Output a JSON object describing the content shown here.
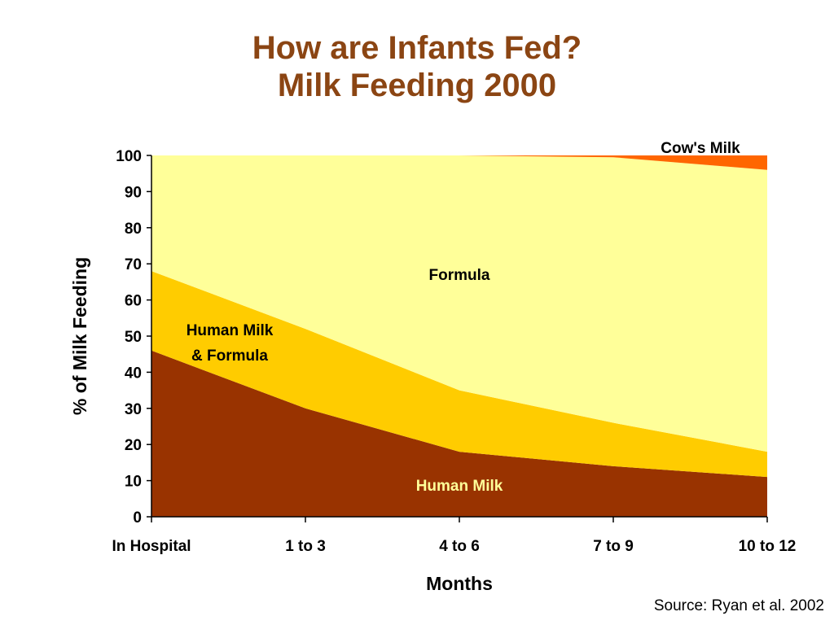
{
  "title_line1": "How are Infants Fed?",
  "title_line2": "Milk Feeding 2000",
  "source": "Source: Ryan et al. 2002",
  "colors": {
    "human_milk": "#993300",
    "human_milk_formula": "#FFCC00",
    "formula": "#FFFF99",
    "cows_milk": "#FF6600",
    "title": "#8B4513",
    "human_milk_label": "#FFFF99"
  },
  "chart_data": {
    "type": "area",
    "stacked": true,
    "categories": [
      "In Hospital",
      "1 to 3",
      "4 to 6",
      "7 to 9",
      "10 to 12"
    ],
    "series": [
      {
        "name": "Human Milk",
        "values": [
          46,
          30,
          18,
          14,
          11
        ]
      },
      {
        "name": "Human Milk & Formula",
        "values": [
          22,
          22,
          17,
          12,
          7
        ]
      },
      {
        "name": "Formula",
        "values": [
          32,
          48,
          65,
          73.5,
          78
        ]
      },
      {
        "name": "Cow's Milk",
        "values": [
          0,
          0,
          0,
          0.5,
          4
        ]
      }
    ],
    "series_labels": {
      "human_milk": "Human Milk",
      "human_milk_formula_line1": "Human Milk",
      "human_milk_formula_line2": "& Formula",
      "formula": "Formula",
      "cows_milk": "Cow's Milk"
    },
    "xlabel": "Months",
    "ylabel": "% of Milk Feeding",
    "ylim": [
      0,
      100
    ],
    "yticks": [
      0,
      10,
      20,
      30,
      40,
      50,
      60,
      70,
      80,
      90,
      100
    ],
    "grid": false,
    "legend": "none"
  }
}
